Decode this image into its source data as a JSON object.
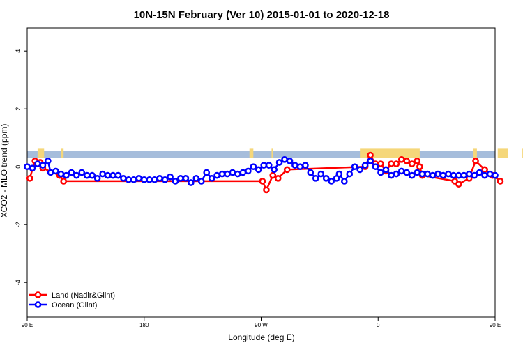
{
  "chart_data": {
    "type": "line",
    "title": "10N-15N February (Ver 10)   2015-01-01 to 2020-12-18",
    "xlabel": "Longitude (deg E)",
    "ylabel": "XCO2 - MLO trend (ppm)",
    "xlim": [
      90,
      450
    ],
    "ylim": [
      -5.2,
      4.8
    ],
    "x_ticks": [
      {
        "value": 90,
        "label": "90 E"
      },
      {
        "value": 180,
        "label": "180"
      },
      {
        "value": 270,
        "label": "90 W"
      },
      {
        "value": 360,
        "label": "0"
      },
      {
        "value": 450,
        "label": "90 E"
      },
      {
        "value": 540,
        "label": "180"
      }
    ],
    "y_ticks": [
      -4,
      -2,
      0,
      2,
      4
    ],
    "grid": false,
    "legend_position": "bottom-left",
    "land_band": {
      "color_ocean": "#a6bddb",
      "color_land": "#f5d77a",
      "y_range": [
        0.3,
        0.55
      ],
      "land_segments": [
        [
          98,
          103
        ],
        [
          116,
          118
        ],
        [
          261,
          264
        ],
        [
          278,
          279
        ],
        [
          346,
          392
        ],
        [
          433,
          436
        ],
        [
          452,
          460
        ],
        [
          471,
          473
        ]
      ]
    },
    "series": [
      {
        "name": "Land (Nadir&Glint)",
        "color": "#ff0000",
        "points": [
          [
            92,
            -0.4
          ],
          [
            96,
            0.2
          ],
          [
            100,
            0.15
          ],
          [
            102,
            -0.05
          ],
          [
            115,
            -0.3
          ],
          [
            118,
            -0.5
          ],
          [
            271,
            -0.5
          ],
          [
            274,
            -0.8
          ],
          [
            279,
            -0.3
          ],
          [
            283,
            -0.4
          ],
          [
            290,
            -0.1
          ],
          [
            350,
            0
          ],
          [
            354,
            0.4
          ],
          [
            358,
            0.1
          ],
          [
            362,
            0.1
          ],
          [
            366,
            -0.15
          ],
          [
            370,
            0.1
          ],
          [
            374,
            0.1
          ],
          [
            378,
            0.25
          ],
          [
            382,
            0.2
          ],
          [
            386,
            0.1
          ],
          [
            390,
            0.2
          ],
          [
            392,
            0
          ],
          [
            394,
            -0.3
          ],
          [
            419,
            -0.5
          ],
          [
            422,
            -0.6
          ],
          [
            430,
            -0.4
          ],
          [
            435,
            0.2
          ],
          [
            442,
            -0.1
          ],
          [
            448,
            -0.3
          ],
          [
            454,
            -0.5
          ]
        ]
      },
      {
        "name": "Ocean (Glint)",
        "color": "#0000ff",
        "points": [
          [
            90,
            0
          ],
          [
            94,
            -0.05
          ],
          [
            98,
            0.1
          ],
          [
            102,
            0.05
          ],
          [
            106,
            0.2
          ],
          [
            108,
            -0.2
          ],
          [
            112,
            -0.15
          ],
          [
            116,
            -0.25
          ],
          [
            120,
            -0.3
          ],
          [
            124,
            -0.2
          ],
          [
            128,
            -0.3
          ],
          [
            132,
            -0.2
          ],
          [
            136,
            -0.3
          ],
          [
            140,
            -0.3
          ],
          [
            144,
            -0.4
          ],
          [
            148,
            -0.25
          ],
          [
            152,
            -0.3
          ],
          [
            156,
            -0.3
          ],
          [
            160,
            -0.3
          ],
          [
            164,
            -0.4
          ],
          [
            168,
            -0.45
          ],
          [
            172,
            -0.45
          ],
          [
            176,
            -0.4
          ],
          [
            180,
            -0.45
          ],
          [
            184,
            -0.45
          ],
          [
            188,
            -0.45
          ],
          [
            192,
            -0.4
          ],
          [
            196,
            -0.45
          ],
          [
            200,
            -0.35
          ],
          [
            204,
            -0.5
          ],
          [
            208,
            -0.4
          ],
          [
            212,
            -0.4
          ],
          [
            216,
            -0.55
          ],
          [
            220,
            -0.4
          ],
          [
            224,
            -0.5
          ],
          [
            228,
            -0.2
          ],
          [
            232,
            -0.4
          ],
          [
            236,
            -0.3
          ],
          [
            240,
            -0.25
          ],
          [
            244,
            -0.25
          ],
          [
            248,
            -0.2
          ],
          [
            252,
            -0.25
          ],
          [
            256,
            -0.2
          ],
          [
            260,
            -0.15
          ],
          [
            264,
            0
          ],
          [
            268,
            -0.1
          ],
          [
            272,
            0.05
          ],
          [
            276,
            0.05
          ],
          [
            280,
            -0.1
          ],
          [
            284,
            0.15
          ],
          [
            288,
            0.25
          ],
          [
            292,
            0.2
          ],
          [
            296,
            0.05
          ],
          [
            300,
            0
          ],
          [
            304,
            0.05
          ],
          [
            308,
            -0.2
          ],
          [
            312,
            -0.4
          ],
          [
            316,
            -0.25
          ],
          [
            320,
            -0.4
          ],
          [
            324,
            -0.5
          ],
          [
            328,
            -0.4
          ],
          [
            330,
            -0.25
          ],
          [
            334,
            -0.5
          ],
          [
            338,
            -0.25
          ],
          [
            342,
            0
          ],
          [
            346,
            -0.1
          ],
          [
            350,
            0.05
          ],
          [
            354,
            0.2
          ],
          [
            358,
            0
          ],
          [
            362,
            -0.2
          ],
          [
            366,
            -0.1
          ],
          [
            370,
            -0.3
          ],
          [
            374,
            -0.25
          ],
          [
            378,
            -0.15
          ],
          [
            382,
            -0.2
          ],
          [
            386,
            -0.3
          ],
          [
            390,
            -0.2
          ],
          [
            394,
            -0.25
          ],
          [
            398,
            -0.25
          ],
          [
            402,
            -0.3
          ],
          [
            406,
            -0.25
          ],
          [
            410,
            -0.3
          ],
          [
            414,
            -0.25
          ],
          [
            418,
            -0.3
          ],
          [
            422,
            -0.3
          ],
          [
            426,
            -0.3
          ],
          [
            430,
            -0.25
          ],
          [
            434,
            -0.3
          ],
          [
            438,
            -0.2
          ],
          [
            442,
            -0.3
          ],
          [
            446,
            -0.25
          ],
          [
            450,
            -0.3
          ]
        ]
      }
    ],
    "legend": [
      {
        "label": "Land (Nadir&Glint)",
        "color": "#ff0000"
      },
      {
        "label": "Ocean (Glint)",
        "color": "#0000ff"
      }
    ]
  }
}
